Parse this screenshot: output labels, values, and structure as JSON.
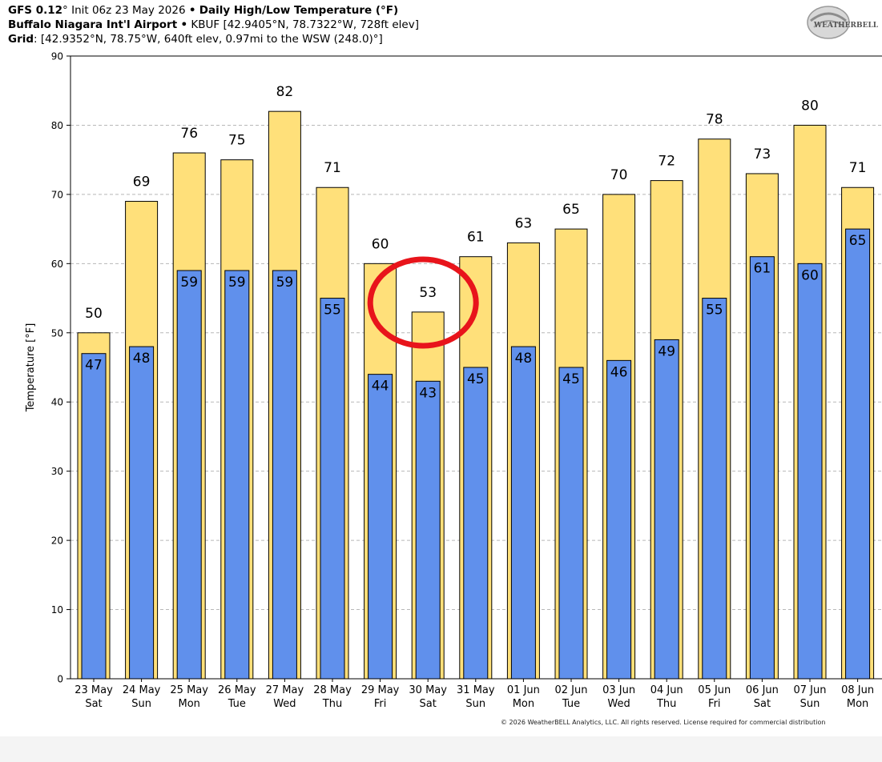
{
  "header": {
    "line1": {
      "model": "GFS 0.12",
      "deg": "°",
      "init": "Init 06z 23 May 2026",
      "sep": "•",
      "product": "Daily High/Low Temperature (°F)"
    },
    "line2": {
      "station": "Buffalo Niagara Int'l Airport",
      "sep": "•",
      "details": "KBUF [42.9405°N, 78.7322°W, 728ft elev]"
    },
    "line3": {
      "label": "Grid",
      "details": ": [42.9352°N, 78.75°W, 640ft elev, 0.97mi to the WSW (248.0)°]"
    }
  },
  "logo": {
    "text": "WEATHERBELL"
  },
  "copyright": "© 2026 WeatherBELL Analytics, LLC. All rights reserved. License required for commercial distribution",
  "colors": {
    "high": "#ffe07a",
    "low": "#6090ec",
    "annotation": "#e8141b",
    "grid": "#b8b8b8"
  },
  "chart_data": {
    "type": "bar",
    "ylabel": "Temperature [°F]",
    "ylim": [
      0,
      90
    ],
    "yticks": [
      0,
      10,
      20,
      30,
      40,
      50,
      60,
      70,
      80,
      90
    ],
    "grid": true,
    "categories": [
      [
        "23 May",
        "Sat"
      ],
      [
        "24 May",
        "Sun"
      ],
      [
        "25 May",
        "Mon"
      ],
      [
        "26 May",
        "Tue"
      ],
      [
        "27 May",
        "Wed"
      ],
      [
        "28 May",
        "Thu"
      ],
      [
        "29 May",
        "Fri"
      ],
      [
        "30 May",
        "Sat"
      ],
      [
        "31 May",
        "Sun"
      ],
      [
        "01 Jun",
        "Mon"
      ],
      [
        "02 Jun",
        "Tue"
      ],
      [
        "03 Jun",
        "Wed"
      ],
      [
        "04 Jun",
        "Thu"
      ],
      [
        "05 Jun",
        "Fri"
      ],
      [
        "06 Jun",
        "Sat"
      ],
      [
        "07 Jun",
        "Sun"
      ],
      [
        "08 Jun",
        "Mon"
      ]
    ],
    "series": [
      {
        "values": [
          50,
          69,
          76,
          75,
          82,
          71,
          60,
          53,
          61,
          63,
          65,
          70,
          72,
          78,
          73,
          80,
          71
        ]
      },
      {
        "values": [
          47,
          48,
          59,
          59,
          59,
          55,
          44,
          43,
          45,
          48,
          45,
          46,
          49,
          55,
          61,
          60,
          65
        ]
      }
    ],
    "annotation": {
      "type": "circle",
      "category_index": 7
    }
  }
}
